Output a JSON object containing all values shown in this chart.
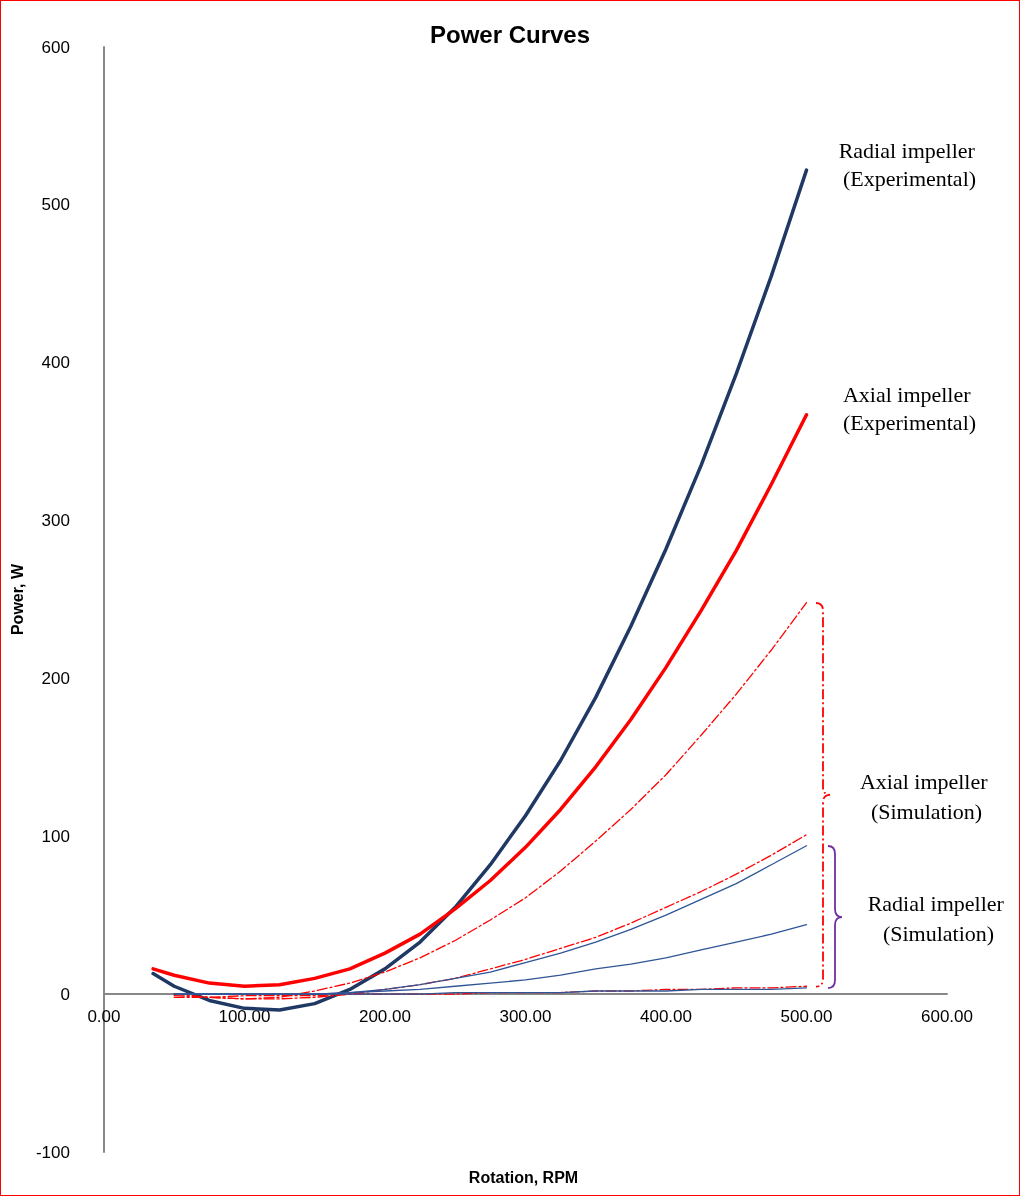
{
  "chart_data": {
    "type": "line",
    "title": "Power Curves",
    "xlabel": "Rotation, RPM",
    "ylabel": "Power, W",
    "x": [
      50,
      75,
      100,
      125,
      150,
      175,
      200,
      225,
      250,
      275,
      300,
      325,
      350,
      375,
      400,
      425,
      450,
      475,
      500
    ],
    "xlim": [
      0,
      600
    ],
    "xticks": [
      {
        "value": 0,
        "label": "0.00"
      },
      {
        "value": 100,
        "label": "100.00"
      },
      {
        "value": 200,
        "label": "200.00"
      },
      {
        "value": 300,
        "label": "300.00"
      },
      {
        "value": 400,
        "label": "400.00"
      },
      {
        "value": 500,
        "label": "500.00"
      },
      {
        "value": 600,
        "label": "600.00"
      }
    ],
    "ylim": [
      -100,
      600
    ],
    "yticks": [
      -100,
      0,
      100,
      200,
      300,
      400,
      500,
      600
    ],
    "grid": false,
    "legend": false,
    "marker": "none",
    "series": [
      {
        "name": "Radial impeller (Experimental)",
        "color": "#1f3864",
        "line_style": "solid",
        "x": [
          35,
          50,
          75,
          100,
          125,
          150,
          175,
          200,
          225,
          250,
          275,
          300,
          325,
          350,
          375,
          400,
          425,
          450,
          475,
          500
        ],
        "values": [
          13,
          5,
          -4,
          -9,
          -10,
          -6,
          3,
          16,
          33,
          55,
          82,
          113,
          148,
          188,
          233,
          282,
          335,
          393,
          455,
          522
        ]
      },
      {
        "name": "Axial impeller (Experimental)",
        "color": "#ff0000",
        "line_style": "solid",
        "x": [
          35,
          50,
          75,
          100,
          125,
          150,
          175,
          200,
          225,
          250,
          275,
          300,
          325,
          350,
          375,
          400,
          425,
          450,
          475,
          500
        ],
        "values": [
          16,
          12,
          7,
          5,
          6,
          10,
          16,
          26,
          38,
          54,
          72,
          93,
          117,
          144,
          174,
          207,
          243,
          281,
          323,
          367
        ]
      },
      {
        "color": "#ff0000",
        "line_style": "dashed",
        "values": [
          0,
          -2,
          -3,
          -2,
          2,
          7,
          14,
          23,
          34,
          47,
          61,
          78,
          97,
          117,
          139,
          164,
          190,
          218,
          248
        ]
      },
      {
        "color": "#ff0000",
        "line_style": "dashed",
        "values": [
          -1,
          -2,
          -3,
          -3,
          -2,
          0,
          3,
          6,
          10,
          16,
          22,
          29,
          36,
          45,
          55,
          65,
          76,
          88,
          101
        ]
      },
      {
        "color": "#ff0000",
        "line_style": "dashed",
        "values": [
          -2,
          -2,
          -1,
          -1,
          -1,
          0,
          0,
          0,
          0,
          1,
          1,
          1,
          2,
          2,
          3,
          3,
          4,
          4,
          5
        ]
      },
      {
        "color": "#2f5597",
        "line_style": "solid",
        "values": [
          0,
          0,
          0,
          0,
          0,
          1,
          3,
          6,
          10,
          14,
          20,
          26,
          33,
          41,
          50,
          60,
          70,
          82,
          94
        ]
      },
      {
        "color": "#2f5597",
        "line_style": "solid",
        "values": [
          0,
          0,
          0,
          0,
          0,
          1,
          2,
          3,
          5,
          7,
          9,
          12,
          16,
          19,
          23,
          28,
          33,
          38,
          44
        ]
      },
      {
        "color": "#2f5597",
        "line_style": "solid",
        "values": [
          0,
          0,
          0,
          0,
          0,
          0,
          0,
          0,
          1,
          1,
          1,
          1,
          2,
          2,
          2,
          3,
          3,
          3,
          4
        ]
      }
    ],
    "annotations": [
      "Axial impeller (Simulation)",
      "Radial impeller (Simulation)"
    ]
  }
}
